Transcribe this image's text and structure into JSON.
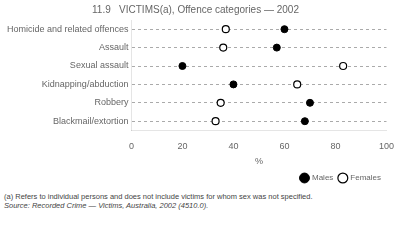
{
  "chart_data": {
    "type": "dot",
    "orientation": "horizontal",
    "title": "11.9   VICTIMS(a), Offence categories — 2002",
    "categories": [
      "Homicide and related offences",
      "Assault",
      "Sexual assault",
      "Kidnapping/abduction",
      "Robbery",
      "Blackmail/extortion"
    ],
    "series": [
      {
        "name": "Males",
        "color": "#000000",
        "marker": "filled_circle",
        "values": [
          60,
          57,
          20,
          40,
          70,
          68
        ]
      },
      {
        "name": "Females",
        "color": "#000000",
        "marker": "open_circle",
        "values": [
          37,
          36,
          83,
          65,
          35,
          33
        ]
      }
    ],
    "xlabel": "%",
    "xlim": [
      0,
      100
    ],
    "xticks": [
      0,
      20,
      40,
      60,
      80,
      100
    ],
    "grid": true,
    "legend": "lower right",
    "annotations": [
      "(a)  Refers to individual persons and does not include victims for whom sex was not specified.",
      "Source:  Recorded Crime — Victims, Australia, 2002 (4510.0)."
    ]
  }
}
